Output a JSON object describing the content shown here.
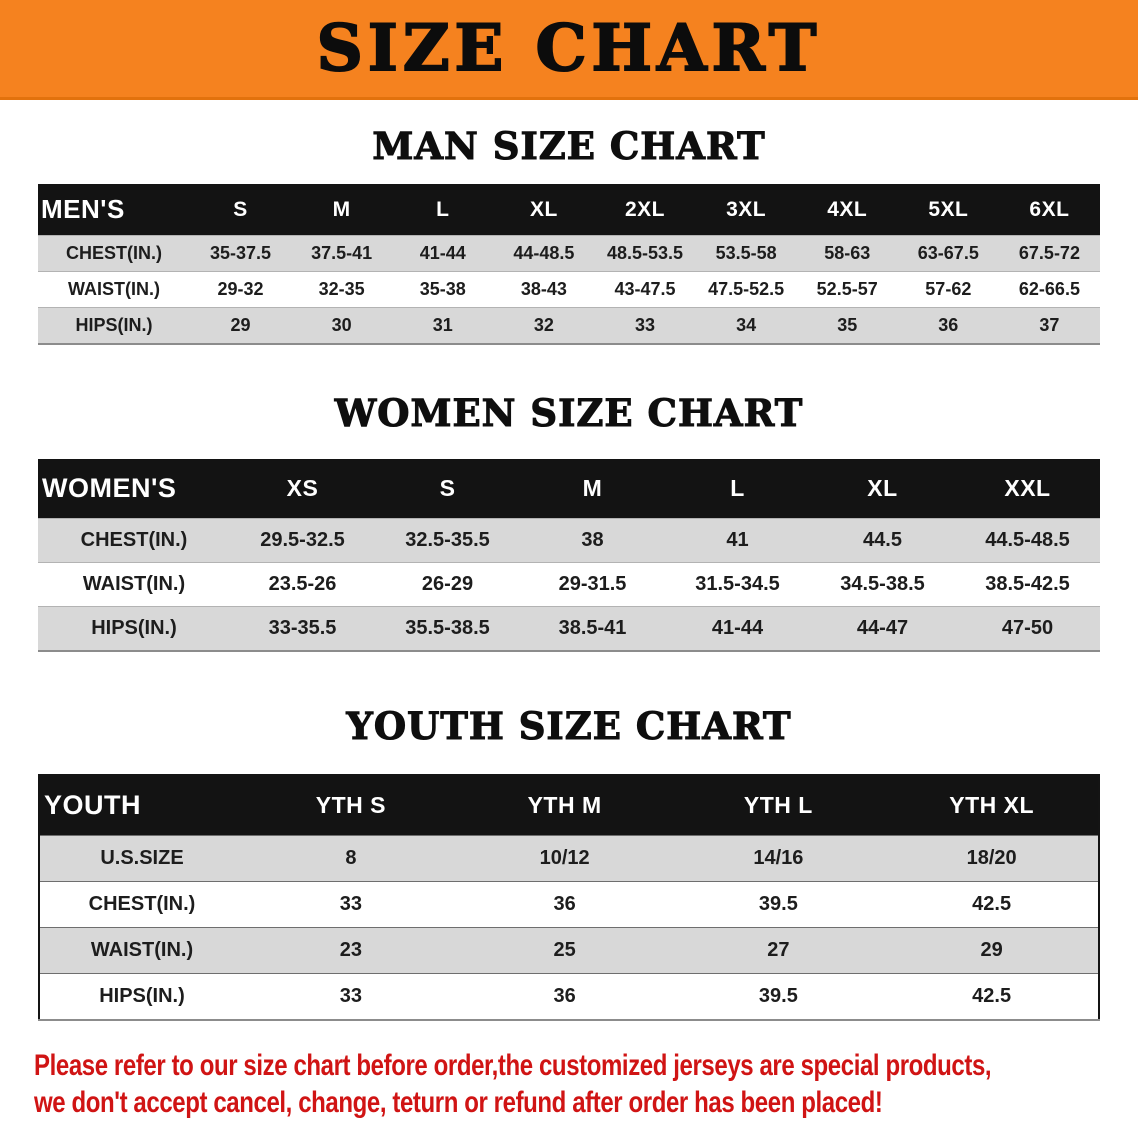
{
  "banner": {
    "title": "SIZE CHART"
  },
  "chart_data": [
    {
      "type": "table",
      "title": "MAN SIZE CHART",
      "columns": [
        "MEN'S",
        "S",
        "M",
        "L",
        "XL",
        "2XL",
        "3XL",
        "4XL",
        "5XL",
        "6XL"
      ],
      "rows": [
        [
          "CHEST(IN.)",
          "35-37.5",
          "37.5-41",
          "41-44",
          "44-48.5",
          "48.5-53.5",
          "53.5-58",
          "58-63",
          "63-67.5",
          "67.5-72"
        ],
        [
          "WAIST(IN.)",
          "29-32",
          "32-35",
          "35-38",
          "38-43",
          "43-47.5",
          "47.5-52.5",
          "52.5-57",
          "57-62",
          "62-66.5"
        ],
        [
          "HIPS(IN.)",
          "29",
          "30",
          "31",
          "32",
          "33",
          "34",
          "35",
          "36",
          "37"
        ]
      ]
    },
    {
      "type": "table",
      "title": "WOMEN SIZE CHART",
      "columns": [
        "WOMEN'S",
        "XS",
        "S",
        "M",
        "L",
        "XL",
        "XXL"
      ],
      "rows": [
        [
          "CHEST(IN.)",
          "29.5-32.5",
          "32.5-35.5",
          "38",
          "41",
          "44.5",
          "44.5-48.5"
        ],
        [
          "WAIST(IN.)",
          "23.5-26",
          "26-29",
          "29-31.5",
          "31.5-34.5",
          "34.5-38.5",
          "38.5-42.5"
        ],
        [
          "HIPS(IN.)",
          "33-35.5",
          "35.5-38.5",
          "38.5-41",
          "41-44",
          "44-47",
          "47-50"
        ]
      ]
    },
    {
      "type": "table",
      "title": "YOUTH SIZE CHART",
      "columns": [
        "YOUTH",
        "YTH S",
        "YTH M",
        "YTH L",
        "YTH XL"
      ],
      "rows": [
        [
          "U.S.SIZE",
          "8",
          "10/12",
          "14/16",
          "18/20"
        ],
        [
          "CHEST(IN.)",
          "33",
          "36",
          "39.5",
          "42.5"
        ],
        [
          "WAIST(IN.)",
          "23",
          "25",
          "27",
          "29"
        ],
        [
          "HIPS(IN.)",
          "33",
          "36",
          "39.5",
          "42.5"
        ]
      ]
    }
  ],
  "footer": {
    "line1": "Please refer to our size chart before order,the customized jerseys are special products,",
    "line2": "we don't accept cancel, change, teturn or refund after order has been placed!"
  },
  "colors": {
    "banner_bg": "#f5821f",
    "header_bg": "#131313",
    "row_alt_bg": "#d8d8d8",
    "footer_red": "#d01414"
  }
}
